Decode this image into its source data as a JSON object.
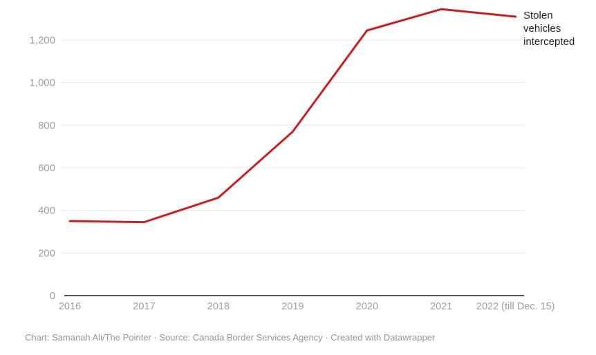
{
  "chart_data": {
    "type": "line",
    "title": "",
    "categories": [
      "2016",
      "2017",
      "2018",
      "2019",
      "2020",
      "2021",
      "2022 (till Dec. 15)"
    ],
    "series": [
      {
        "name": "Stolen vehicles intercepted",
        "values": [
          350,
          345,
          460,
          770,
          1245,
          1345,
          1310
        ]
      }
    ],
    "ytick_labels": [
      "0",
      "200",
      "400",
      "600",
      "800",
      "1,000",
      "1,200"
    ],
    "ytick_values": [
      0,
      200,
      400,
      600,
      800,
      1000,
      1200
    ],
    "ylim": [
      0,
      1390
    ],
    "grid": "horizontal",
    "legend_position": "annotation-right-of-line-end",
    "annotation": "Stolen vehicles intercepted"
  },
  "colors": {
    "line": "#cd1d1f",
    "grid": "#e9e9e9",
    "axis_baseline": "#1a1a1a",
    "tick_label": "#9d9d9d",
    "annotation_text": "#222222",
    "footer_text": "#969696"
  },
  "footer": {
    "credit": "Chart: Samanah Ali/The Pointer · Source: Canada Border Services Agency · Created with Datawrapper"
  }
}
